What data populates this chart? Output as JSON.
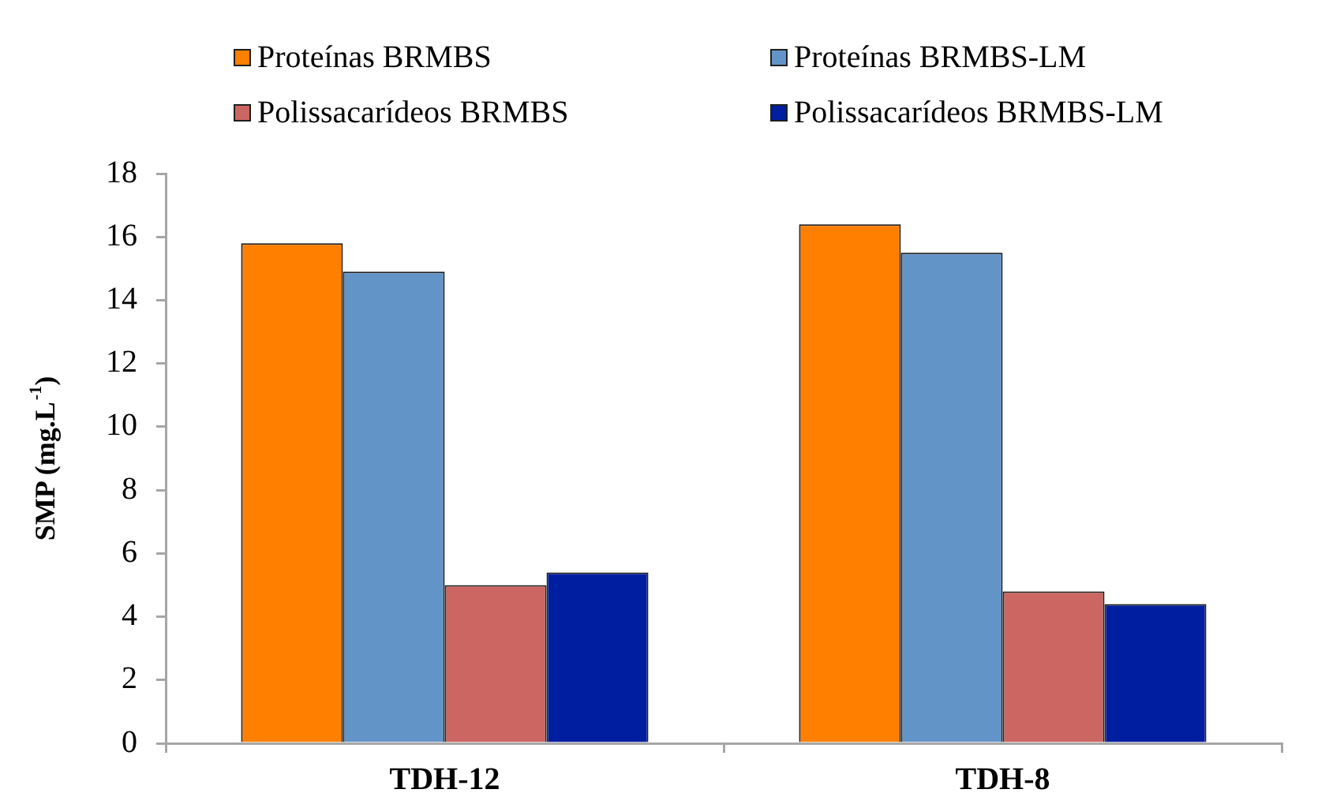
{
  "chart_data": {
    "type": "bar",
    "categories": [
      "TDH-12",
      "TDH-8"
    ],
    "series": [
      {
        "name": "Proteínas BRMBS",
        "color": "#ff7f00",
        "values": [
          15.8,
          16.4
        ]
      },
      {
        "name": "Proteínas BRMBS-LM",
        "color": "#6394c8",
        "values": [
          14.9,
          15.5
        ]
      },
      {
        "name": "Polissacarídeos BRMBS",
        "color": "#cc6662",
        "values": [
          5.0,
          4.8
        ]
      },
      {
        "name": "Polissacarídeos BRMBS-LM",
        "color": "#001ea0",
        "values": [
          5.4,
          4.4
        ]
      }
    ],
    "ylabel": "SMP (mg.L$^{-1}$)",
    "ylim": [
      0,
      18
    ],
    "yticks": [
      0,
      2,
      4,
      6,
      8,
      10,
      12,
      14,
      16,
      18
    ],
    "grid": false,
    "legend": "top"
  }
}
